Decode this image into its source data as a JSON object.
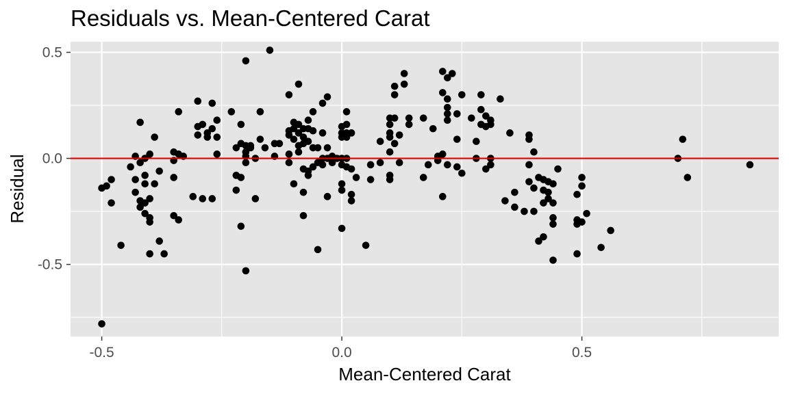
{
  "chart_data": {
    "type": "scatter",
    "title": "Residuals vs. Mean-Centered Carat",
    "xlabel": "Mean-Centered Carat",
    "ylabel": "Residual",
    "xlim": [
      -0.565,
      0.91
    ],
    "ylim": [
      -0.84,
      0.55
    ],
    "x_ticks": [
      -0.5,
      0.0,
      0.5
    ],
    "x_tick_labels": [
      "-0.5",
      "0.0",
      "0.5"
    ],
    "x_minor_ticks": [
      -0.75,
      -0.25,
      0.25,
      0.75
    ],
    "y_ticks": [
      -0.5,
      0.0,
      0.5
    ],
    "y_tick_labels": [
      "-0.5",
      "0.0",
      "0.5"
    ],
    "y_minor_ticks": [
      -0.75,
      -0.25,
      0.25
    ],
    "grid": true,
    "reference_line": {
      "y": 0,
      "color": "#e00000"
    },
    "colors": {
      "panel": "#e5e5e5",
      "grid": "#ffffff",
      "point": "#000000"
    },
    "points": [
      [
        -0.5,
        -0.78
      ],
      [
        -0.5,
        -0.14
      ],
      [
        -0.49,
        -0.13
      ],
      [
        -0.48,
        -0.1
      ],
      [
        -0.48,
        -0.21
      ],
      [
        -0.46,
        -0.41
      ],
      [
        -0.44,
        -0.04
      ],
      [
        -0.43,
        0.01
      ],
      [
        -0.43,
        -0.1
      ],
      [
        -0.43,
        -0.16
      ],
      [
        -0.42,
        0.17
      ],
      [
        -0.42,
        -0.02
      ],
      [
        -0.42,
        -0.2
      ],
      [
        -0.42,
        -0.23
      ],
      [
        -0.41,
        0.0
      ],
      [
        -0.41,
        -0.08
      ],
      [
        -0.41,
        -0.12
      ],
      [
        -0.41,
        -0.21
      ],
      [
        -0.41,
        -0.26
      ],
      [
        -0.4,
        0.02
      ],
      [
        -0.4,
        -0.19
      ],
      [
        -0.4,
        -0.28
      ],
      [
        -0.4,
        -0.3
      ],
      [
        -0.4,
        -0.45
      ],
      [
        -0.39,
        0.1
      ],
      [
        -0.39,
        -0.12
      ],
      [
        -0.38,
        -0.06
      ],
      [
        -0.38,
        -0.39
      ],
      [
        -0.37,
        -0.45
      ],
      [
        -0.35,
        0.03
      ],
      [
        -0.35,
        -0.01
      ],
      [
        -0.35,
        -0.09
      ],
      [
        -0.35,
        -0.27
      ],
      [
        -0.34,
        0.22
      ],
      [
        -0.34,
        0.02
      ],
      [
        -0.34,
        -0.29
      ],
      [
        -0.33,
        0.01
      ],
      [
        -0.31,
        -0.18
      ],
      [
        -0.3,
        0.27
      ],
      [
        -0.3,
        0.15
      ],
      [
        -0.3,
        0.11
      ],
      [
        -0.29,
        0.16
      ],
      [
        -0.29,
        -0.19
      ],
      [
        -0.28,
        0.12
      ],
      [
        -0.28,
        0.1
      ],
      [
        -0.27,
        0.26
      ],
      [
        -0.27,
        0.14
      ],
      [
        -0.27,
        -0.19
      ],
      [
        -0.26,
        0.18
      ],
      [
        -0.26,
        0.1
      ],
      [
        -0.26,
        0.02
      ],
      [
        -0.23,
        0.22
      ],
      [
        -0.22,
        0.05
      ],
      [
        -0.22,
        -0.08
      ],
      [
        -0.22,
        -0.15
      ],
      [
        -0.21,
        0.16
      ],
      [
        -0.21,
        0.07
      ],
      [
        -0.21,
        -0.09
      ],
      [
        -0.21,
        -0.32
      ],
      [
        -0.2,
        0.46
      ],
      [
        -0.2,
        0.06
      ],
      [
        -0.2,
        0.03
      ],
      [
        -0.2,
        0.01
      ],
      [
        -0.2,
        -0.02
      ],
      [
        -0.2,
        -0.53
      ],
      [
        -0.19,
        0.06
      ],
      [
        -0.19,
        0.05
      ],
      [
        -0.18,
        0.0
      ],
      [
        -0.18,
        -0.19
      ],
      [
        -0.17,
        0.22
      ],
      [
        -0.17,
        0.09
      ],
      [
        -0.16,
        0.05
      ],
      [
        -0.15,
        0.51
      ],
      [
        -0.14,
        0.07
      ],
      [
        -0.14,
        0.01
      ],
      [
        -0.13,
        0.07
      ],
      [
        -0.11,
        0.3
      ],
      [
        -0.11,
        0.13
      ],
      [
        -0.11,
        0.11
      ],
      [
        -0.11,
        0.02
      ],
      [
        -0.11,
        -0.02
      ],
      [
        -0.1,
        0.17
      ],
      [
        -0.1,
        0.14
      ],
      [
        -0.1,
        0.09
      ],
      [
        -0.1,
        -0.12
      ],
      [
        -0.09,
        0.35
      ],
      [
        -0.09,
        0.16
      ],
      [
        -0.09,
        0.12
      ],
      [
        -0.09,
        0.06
      ],
      [
        -0.09,
        0.03
      ],
      [
        -0.08,
        0.14
      ],
      [
        -0.08,
        0.1
      ],
      [
        -0.08,
        0.07
      ],
      [
        -0.08,
        -0.05
      ],
      [
        -0.08,
        -0.16
      ],
      [
        -0.08,
        -0.27
      ],
      [
        -0.07,
        0.18
      ],
      [
        -0.07,
        0.14
      ],
      [
        -0.07,
        0.08
      ],
      [
        -0.07,
        -0.06
      ],
      [
        -0.07,
        -0.08
      ],
      [
        -0.06,
        0.22
      ],
      [
        -0.06,
        0.13
      ],
      [
        -0.06,
        0.05
      ],
      [
        -0.06,
        -0.04
      ],
      [
        -0.05,
        0.05
      ],
      [
        -0.05,
        -0.02
      ],
      [
        -0.05,
        -0.43
      ],
      [
        -0.04,
        0.26
      ],
      [
        -0.04,
        0.12
      ],
      [
        -0.04,
        0.0
      ],
      [
        -0.04,
        -0.03
      ],
      [
        -0.03,
        0.29
      ],
      [
        -0.03,
        0.05
      ],
      [
        -0.03,
        0.0
      ],
      [
        -0.03,
        -0.18
      ],
      [
        -0.02,
        0.01
      ],
      [
        -0.02,
        -0.02
      ],
      [
        -0.01,
        0.0
      ],
      [
        0.0,
        0.15
      ],
      [
        0.0,
        0.12
      ],
      [
        0.0,
        0.1
      ],
      [
        0.0,
        0.0
      ],
      [
        0.0,
        -0.03
      ],
      [
        0.0,
        -0.12
      ],
      [
        0.0,
        -0.15
      ],
      [
        0.0,
        -0.33
      ],
      [
        0.01,
        0.22
      ],
      [
        0.01,
        0.16
      ],
      [
        0.01,
        0.12
      ],
      [
        0.01,
        0.1
      ],
      [
        0.01,
        0.0
      ],
      [
        0.01,
        -0.04
      ],
      [
        0.02,
        0.12
      ],
      [
        0.02,
        -0.05
      ],
      [
        0.02,
        -0.17
      ],
      [
        0.02,
        -0.2
      ],
      [
        0.03,
        -0.09
      ],
      [
        0.05,
        -0.41
      ],
      [
        0.06,
        -0.03
      ],
      [
        0.06,
        -0.1
      ],
      [
        0.08,
        0.08
      ],
      [
        0.08,
        -0.02
      ],
      [
        0.1,
        0.19
      ],
      [
        0.1,
        0.16
      ],
      [
        0.1,
        0.12
      ],
      [
        0.1,
        0.1
      ],
      [
        0.1,
        0.03
      ],
      [
        0.1,
        -0.08
      ],
      [
        0.1,
        -0.1
      ],
      [
        0.11,
        0.34
      ],
      [
        0.11,
        0.3
      ],
      [
        0.11,
        0.19
      ],
      [
        0.11,
        0.07
      ],
      [
        0.12,
        0.11
      ],
      [
        0.12,
        -0.02
      ],
      [
        0.13,
        0.4
      ],
      [
        0.13,
        0.35
      ],
      [
        0.14,
        0.19
      ],
      [
        0.14,
        0.16
      ],
      [
        0.17,
        0.19
      ],
      [
        0.17,
        -0.09
      ],
      [
        0.18,
        -0.03
      ],
      [
        0.19,
        0.14
      ],
      [
        0.2,
        0.01
      ],
      [
        0.2,
        -0.01
      ],
      [
        0.21,
        0.41
      ],
      [
        0.21,
        0.31
      ],
      [
        0.21,
        0.02
      ],
      [
        0.21,
        -0.18
      ],
      [
        0.22,
        0.38
      ],
      [
        0.22,
        0.28
      ],
      [
        0.22,
        0.24
      ],
      [
        0.22,
        0.21
      ],
      [
        0.22,
        0.18
      ],
      [
        0.22,
        -0.03
      ],
      [
        0.23,
        0.4
      ],
      [
        0.24,
        0.21
      ],
      [
        0.24,
        0.09
      ],
      [
        0.24,
        -0.04
      ],
      [
        0.25,
        0.3
      ],
      [
        0.25,
        -0.07
      ],
      [
        0.27,
        0.19
      ],
      [
        0.28,
        0.08
      ],
      [
        0.28,
        0.0
      ],
      [
        0.29,
        0.3
      ],
      [
        0.29,
        0.23
      ],
      [
        0.29,
        0.16
      ],
      [
        0.3,
        0.2
      ],
      [
        0.3,
        0.15
      ],
      [
        0.3,
        -0.05
      ],
      [
        0.31,
        0.18
      ],
      [
        0.31,
        0.16
      ],
      [
        0.31,
        0.0
      ],
      [
        0.31,
        -0.03
      ],
      [
        0.33,
        0.28
      ],
      [
        0.34,
        -0.2
      ],
      [
        0.35,
        0.12
      ],
      [
        0.36,
        -0.16
      ],
      [
        0.36,
        -0.23
      ],
      [
        0.38,
        -0.25
      ],
      [
        0.39,
        0.11
      ],
      [
        0.39,
        0.09
      ],
      [
        0.39,
        -0.03
      ],
      [
        0.39,
        -0.11
      ],
      [
        0.4,
        0.03
      ],
      [
        0.4,
        -0.14
      ],
      [
        0.4,
        -0.25
      ],
      [
        0.41,
        -0.09
      ],
      [
        0.41,
        -0.39
      ],
      [
        0.42,
        -0.1
      ],
      [
        0.42,
        -0.15
      ],
      [
        0.42,
        -0.21
      ],
      [
        0.42,
        -0.37
      ],
      [
        0.43,
        -0.11
      ],
      [
        0.43,
        -0.16
      ],
      [
        0.43,
        -0.19
      ],
      [
        0.44,
        -0.12
      ],
      [
        0.44,
        -0.21
      ],
      [
        0.44,
        -0.28
      ],
      [
        0.44,
        -0.31
      ],
      [
        0.44,
        -0.48
      ],
      [
        0.45,
        -0.05
      ],
      [
        0.49,
        -0.17
      ],
      [
        0.49,
        -0.29
      ],
      [
        0.49,
        -0.31
      ],
      [
        0.49,
        -0.45
      ],
      [
        0.5,
        -0.09
      ],
      [
        0.5,
        -0.13
      ],
      [
        0.5,
        -0.3
      ],
      [
        0.51,
        -0.26
      ],
      [
        0.54,
        -0.42
      ],
      [
        0.56,
        -0.34
      ],
      [
        0.7,
        0.0
      ],
      [
        0.71,
        0.09
      ],
      [
        0.72,
        -0.09
      ],
      [
        0.85,
        -0.03
      ]
    ]
  }
}
